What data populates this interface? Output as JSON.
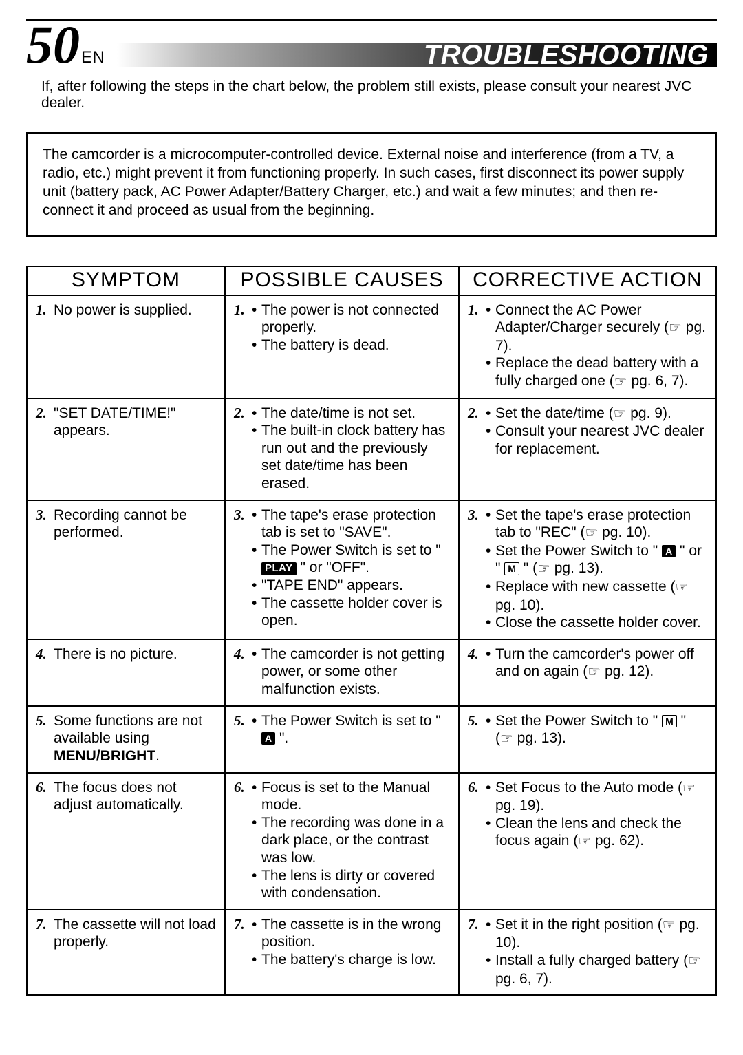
{
  "page": {
    "number": "50",
    "lang": "EN",
    "title": "TROUBLESHOOTING"
  },
  "intro": "If, after following the steps in the chart below, the problem still exists, please consult your nearest JVC dealer.",
  "note": "The camcorder is a microcomputer-controlled device. External noise and interference (from a TV, a radio, etc.) might prevent it from functioning properly. In such cases, first disconnect its power supply unit (battery pack, AC Power Adapter/Battery Charger, etc.) and wait a few minutes; and then re-connect it and proceed as usual from the beginning.",
  "headers": {
    "c1": "SYMPTOM",
    "c2": "POSSIBLE CAUSES",
    "c3": "CORRECTIVE ACTION"
  },
  "rows": [
    {
      "n": "1.",
      "symptom_html": "No power is supplied.",
      "causes": [
        "The power is not connected properly.",
        "The battery is dead."
      ],
      "actions_html": [
        "Connect the AC Power Adapter/Charger securely (<span class='hand'>☞</span> pg. 7).",
        "Replace the dead battery with a fully charged one (<span class='hand'>☞</span> pg. 6, 7)."
      ]
    },
    {
      "n": "2.",
      "symptom_html": "\"SET DATE/TIME!\" appears.",
      "causes": [
        "The date/time is not set.",
        "The built-in clock battery has run out and the previously set date/time has been erased."
      ],
      "actions_html": [
        "Set the date/time (<span class='hand'>☞</span> pg. 9).",
        "Consult your nearest JVC dealer for replacement."
      ]
    },
    {
      "n": "3.",
      "symptom_html": "Recording cannot be performed.",
      "causes_html": [
        "The tape's erase protection tab is set to \"SAVE\".",
        "The Power Switch is set to \" <span class='badge'>PLAY</span> \" or \"OFF\".",
        "\"TAPE END\" appears.",
        "The cassette holder cover is open."
      ],
      "actions_html": [
        "Set the tape's erase protection tab to \"REC\" (<span class='hand'>☞</span> pg. 10).",
        "Set the Power Switch to \" <span class='mbadge mbadge-filled'>A</span> \" or \" <span class='mbadge'>M</span> \" (<span class='hand'>☞</span> pg. 13).",
        "Replace with new cassette (<span class='hand'>☞</span> pg. 10).",
        "Close the cassette holder cover."
      ]
    },
    {
      "n": "4.",
      "symptom_html": "There is no picture.",
      "causes": [
        "The camcorder is not getting power, or some other malfunction exists."
      ],
      "actions_html": [
        "Turn the camcorder's power off and on again (<span class='hand'>☞</span> pg. 12)."
      ]
    },
    {
      "n": "5.",
      "symptom_html": "Some functions are not available using <span class='b'>MENU/BRIGHT</span>.",
      "causes_html": [
        "The Power Switch is set to \" <span class='mbadge mbadge-filled'>A</span> \"."
      ],
      "actions_html": [
        "Set the Power Switch to \" <span class='mbadge'>M</span> \" (<span class='hand'>☞</span> pg. 13)."
      ]
    },
    {
      "n": "6.",
      "symptom_html": "The focus does not adjust automatically.",
      "causes": [
        "Focus is set to the Manual mode.",
        "The recording was done in a dark place, or the contrast was low.",
        "The lens is dirty or covered with condensation."
      ],
      "actions_html": [
        "Set Focus to the Auto mode (<span class='hand'>☞</span> pg. 19).",
        "Clean the lens and check the focus again (<span class='hand'>☞</span> pg. 62)."
      ]
    },
    {
      "n": "7.",
      "symptom_html": "The cassette will not load properly.",
      "causes": [
        "The cassette is in the wrong position.",
        "The battery's charge is low."
      ],
      "actions_html": [
        "Set it in the right position (<span class='hand'>☞</span> pg. 10).",
        "Install a fully charged battery (<span class='hand'>☞</span> pg. 6, 7)."
      ]
    }
  ]
}
